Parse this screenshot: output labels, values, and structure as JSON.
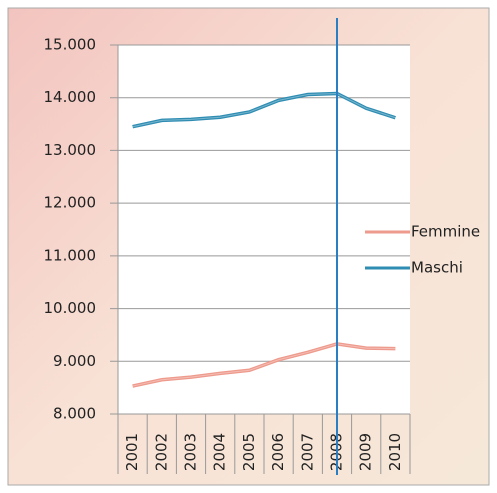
{
  "chart_data": {
    "type": "line",
    "categories": [
      "2001",
      "2002",
      "2003",
      "2004",
      "2005",
      "2006",
      "2007",
      "2008",
      "2009",
      "2010"
    ],
    "series": [
      {
        "name": "Femmine",
        "color": "#ee9a8c",
        "values": [
          8530,
          8650,
          8700,
          8770,
          8830,
          9030,
          9170,
          9330,
          9250,
          9240
        ]
      },
      {
        "name": "Maschi",
        "color": "#2f8db3",
        "values": [
          13450,
          13570,
          13590,
          13630,
          13730,
          13950,
          14060,
          14080,
          13800,
          13620
        ]
      }
    ],
    "ylim": [
      8000,
      15000
    ],
    "yticks": [
      {
        "value": 8000,
        "label": "8.000"
      },
      {
        "value": 9000,
        "label": "9.000"
      },
      {
        "value": 10000,
        "label": "10.000"
      },
      {
        "value": 11000,
        "label": "11.000"
      },
      {
        "value": 12000,
        "label": "12.000"
      },
      {
        "value": 13000,
        "label": "13.000"
      },
      {
        "value": 14000,
        "label": "14.000"
      },
      {
        "value": 15000,
        "label": "15.000"
      }
    ],
    "grid": true,
    "vline_category": "2008",
    "vline_color": "#2a7fc4",
    "legend": "right"
  }
}
